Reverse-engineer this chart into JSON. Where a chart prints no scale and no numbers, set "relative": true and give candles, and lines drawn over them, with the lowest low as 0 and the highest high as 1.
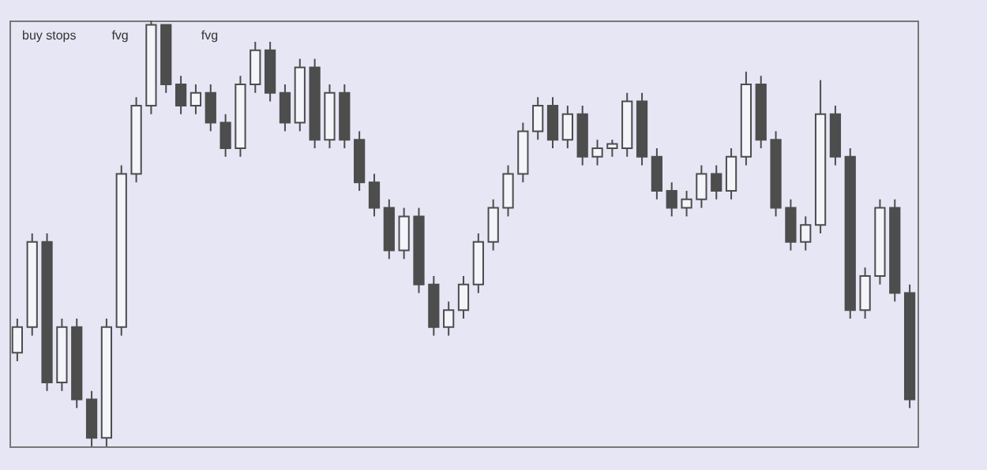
{
  "chart_data": {
    "type": "candlestick",
    "relative": true,
    "tick_labels": false,
    "color": "#4d4d4d",
    "annotations": [
      "buy stops",
      "fvg",
      "fvg"
    ],
    "categories": [
      null,
      null,
      null,
      null,
      null,
      null,
      null,
      null,
      null,
      null,
      null,
      null,
      null,
      null,
      null,
      null,
      null,
      null,
      null,
      null,
      null,
      null,
      null,
      null,
      null,
      null,
      null,
      null,
      null,
      null,
      null,
      null,
      null,
      null,
      null,
      null,
      null,
      null,
      null,
      null,
      null,
      null,
      null,
      null,
      null,
      null,
      null,
      null,
      null,
      null,
      null,
      null,
      null,
      null,
      null,
      null,
      null,
      null,
      null,
      null,
      null
    ],
    "ohlc": [
      [
        0.22,
        0.3,
        0.2,
        0.28
      ],
      [
        0.28,
        0.5,
        0.26,
        0.48
      ],
      [
        0.48,
        0.5,
        0.13,
        0.15
      ],
      [
        0.15,
        0.3,
        0.13,
        0.28
      ],
      [
        0.28,
        0.3,
        0.09,
        0.11
      ],
      [
        0.11,
        0.13,
        0,
        0.02
      ],
      [
        0.02,
        0.3,
        0,
        0.28
      ],
      [
        0.28,
        0.66,
        0.26,
        0.64
      ],
      [
        0.64,
        0.82,
        0.62,
        0.8
      ],
      [
        0.8,
        1,
        0.78,
        0.99
      ],
      [
        0.99,
        0.99,
        0.83,
        0.85
      ],
      [
        0.85,
        0.87,
        0.78,
        0.8
      ],
      [
        0.8,
        0.85,
        0.78,
        0.83
      ],
      [
        0.83,
        0.85,
        0.74,
        0.76
      ],
      [
        0.76,
        0.78,
        0.68,
        0.7
      ],
      [
        0.7,
        0.87,
        0.68,
        0.85
      ],
      [
        0.85,
        0.95,
        0.83,
        0.93
      ],
      [
        0.93,
        0.95,
        0.81,
        0.83
      ],
      [
        0.83,
        0.85,
        0.74,
        0.76
      ],
      [
        0.76,
        0.91,
        0.74,
        0.89
      ],
      [
        0.89,
        0.91,
        0.7,
        0.72
      ],
      [
        0.72,
        0.85,
        0.7,
        0.83
      ],
      [
        0.83,
        0.85,
        0.7,
        0.72
      ],
      [
        0.72,
        0.74,
        0.6,
        0.62
      ],
      [
        0.62,
        0.64,
        0.54,
        0.56
      ],
      [
        0.56,
        0.58,
        0.44,
        0.46
      ],
      [
        0.46,
        0.56,
        0.44,
        0.54
      ],
      [
        0.54,
        0.56,
        0.36,
        0.38
      ],
      [
        0.38,
        0.4,
        0.26,
        0.28
      ],
      [
        0.28,
        0.34,
        0.26,
        0.32
      ],
      [
        0.32,
        0.4,
        0.3,
        0.38
      ],
      [
        0.38,
        0.5,
        0.36,
        0.48
      ],
      [
        0.48,
        0.58,
        0.46,
        0.56
      ],
      [
        0.56,
        0.66,
        0.54,
        0.64
      ],
      [
        0.64,
        0.76,
        0.62,
        0.74
      ],
      [
        0.74,
        0.82,
        0.72,
        0.8
      ],
      [
        0.8,
        0.82,
        0.7,
        0.72
      ],
      [
        0.72,
        0.8,
        0.7,
        0.78
      ],
      [
        0.78,
        0.8,
        0.66,
        0.68
      ],
      [
        0.68,
        0.72,
        0.66,
        0.7
      ],
      [
        0.7,
        0.72,
        0.68,
        0.71
      ],
      [
        0.7,
        0.83,
        0.68,
        0.81
      ],
      [
        0.81,
        0.83,
        0.66,
        0.68
      ],
      [
        0.68,
        0.7,
        0.58,
        0.6
      ],
      [
        0.6,
        0.62,
        0.54,
        0.56
      ],
      [
        0.56,
        0.6,
        0.54,
        0.58
      ],
      [
        0.58,
        0.66,
        0.56,
        0.64
      ],
      [
        0.64,
        0.66,
        0.58,
        0.6
      ],
      [
        0.6,
        0.7,
        0.58,
        0.68
      ],
      [
        0.68,
        0.88,
        0.66,
        0.85
      ],
      [
        0.85,
        0.87,
        0.7,
        0.72
      ],
      [
        0.72,
        0.74,
        0.54,
        0.56
      ],
      [
        0.56,
        0.58,
        0.46,
        0.48
      ],
      [
        0.48,
        0.54,
        0.46,
        0.52
      ],
      [
        0.52,
        0.86,
        0.5,
        0.78
      ],
      [
        0.78,
        0.8,
        0.66,
        0.68
      ],
      [
        0.68,
        0.7,
        0.3,
        0.32
      ],
      [
        0.32,
        0.42,
        0.3,
        0.4
      ],
      [
        0.4,
        0.58,
        0.38,
        0.56
      ],
      [
        0.56,
        0.58,
        0.34,
        0.36
      ],
      [
        0.36,
        0.38,
        0.09,
        0.11
      ]
    ]
  }
}
